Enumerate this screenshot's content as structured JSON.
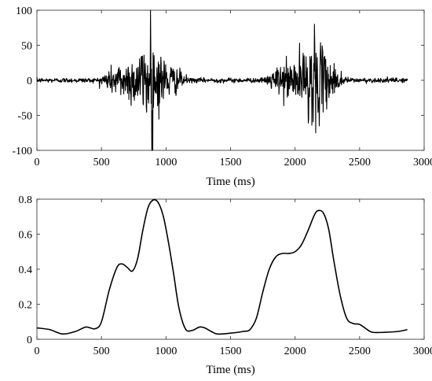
{
  "chart_data": [
    {
      "type": "line",
      "xlabel": "Time (ms)",
      "ylabel": "",
      "xlim": [
        0,
        3000
      ],
      "ylim": [
        -100,
        100
      ],
      "xticks": [
        0,
        500,
        1000,
        1500,
        2000,
        2500,
        3000
      ],
      "yticks": [
        -100,
        -50,
        0,
        50,
        100
      ],
      "grid": false,
      "line_color": "#000000",
      "signal_extent_ms": [
        0,
        2870
      ],
      "bursts": [
        {
          "start": 470,
          "end": 1180,
          "peak_time": 880,
          "peak_value": 100,
          "min_value": -100
        },
        {
          "start": 1760,
          "end": 2420,
          "peak_time": 2150,
          "peak_value": 80,
          "min_value": -75
        }
      ],
      "baseline_noise_amplitude": 3
    },
    {
      "type": "line",
      "xlabel": "Time (ms)",
      "ylabel": "",
      "xlim": [
        0,
        3000
      ],
      "ylim": [
        0,
        0.8
      ],
      "xticks": [
        0,
        500,
        1000,
        1500,
        2000,
        2500,
        3000
      ],
      "yticks": [
        0,
        0.2,
        0.4,
        0.6,
        0.8
      ],
      "ytick_labels": [
        "0",
        "0.2",
        "0.4",
        "0.6",
        "0.8"
      ],
      "grid": false,
      "line_color": "#000000",
      "x": [
        0,
        100,
        200,
        300,
        380,
        450,
        500,
        560,
        620,
        660,
        700,
        740,
        780,
        820,
        860,
        900,
        940,
        980,
        1020,
        1060,
        1100,
        1150,
        1200,
        1260,
        1300,
        1350,
        1400,
        1500,
        1600,
        1650,
        1700,
        1750,
        1800,
        1850,
        1900,
        1950,
        2000,
        2050,
        2100,
        2150,
        2180,
        2220,
        2260,
        2300,
        2350,
        2400,
        2450,
        2500,
        2550,
        2600,
        2700,
        2800,
        2870
      ],
      "y": [
        0.065,
        0.055,
        0.03,
        0.045,
        0.07,
        0.06,
        0.1,
        0.28,
        0.41,
        0.43,
        0.41,
        0.39,
        0.46,
        0.62,
        0.75,
        0.795,
        0.78,
        0.7,
        0.55,
        0.37,
        0.18,
        0.06,
        0.05,
        0.07,
        0.065,
        0.045,
        0.03,
        0.035,
        0.045,
        0.055,
        0.12,
        0.27,
        0.4,
        0.47,
        0.49,
        0.49,
        0.5,
        0.54,
        0.62,
        0.71,
        0.735,
        0.72,
        0.63,
        0.45,
        0.25,
        0.12,
        0.09,
        0.085,
        0.06,
        0.04,
        0.04,
        0.045,
        0.055
      ]
    }
  ]
}
